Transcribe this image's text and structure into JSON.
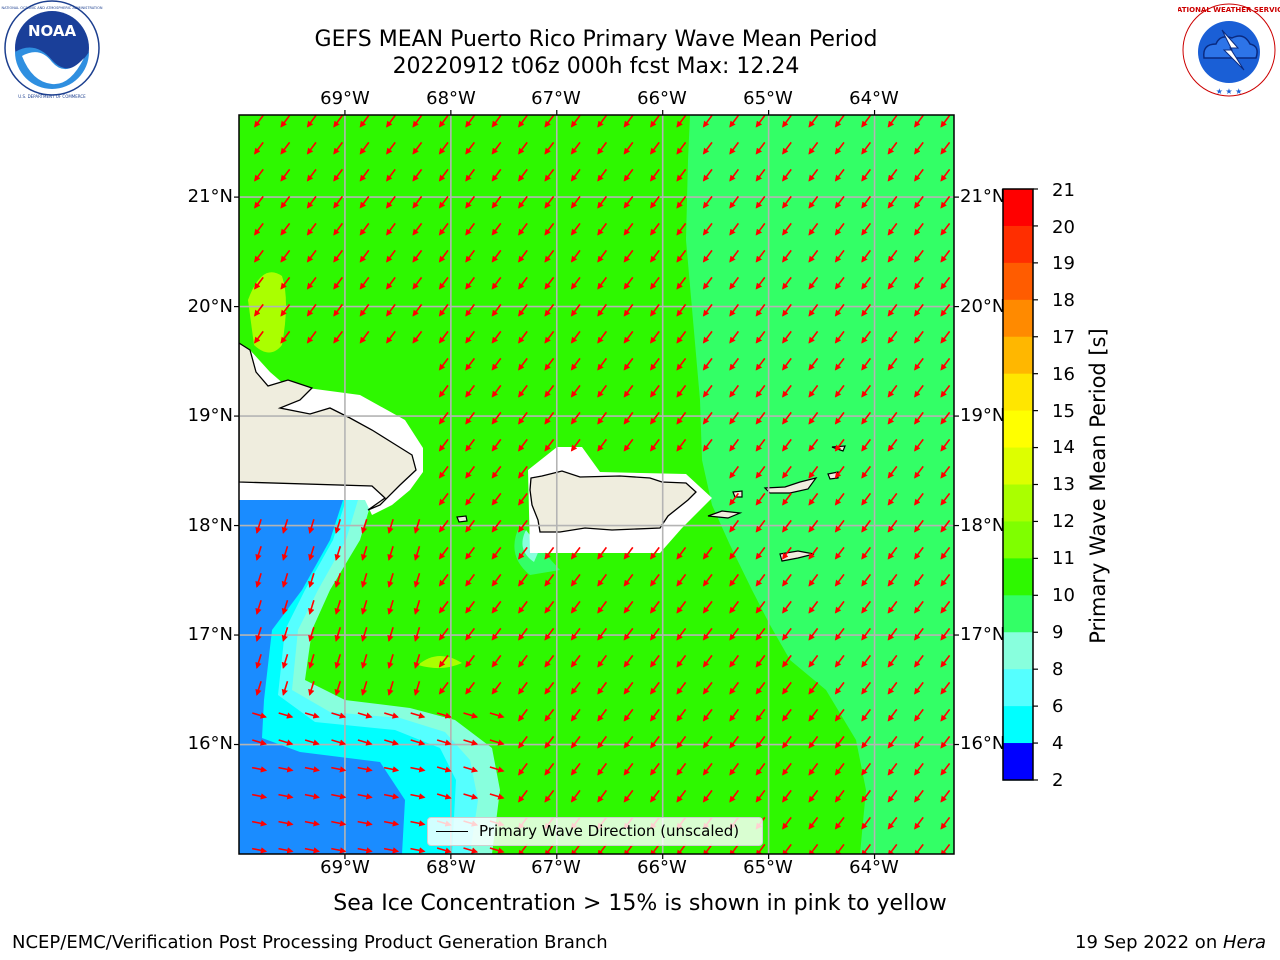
{
  "title_line1": "GEFS MEAN Puerto Rico Primary Wave Mean Period",
  "title_line2": "20220912 t06z 000h fcst   Max: 12.24",
  "longitude_labels": [
    "69°W",
    "68°W",
    "67°W",
    "66°W",
    "65°W",
    "64°W"
  ],
  "latitude_labels": [
    "21°N",
    "20°N",
    "19°N",
    "18°N",
    "17°N",
    "16°N"
  ],
  "map_extent": {
    "lon_min": -70.0,
    "lon_max": -63.25,
    "lat_min": 15.0,
    "lat_max": 21.75
  },
  "colorbar": {
    "title": "Primary Wave Mean Period [s]",
    "ticks": [
      "21",
      "20",
      "19",
      "18",
      "17",
      "16",
      "15",
      "14",
      "13",
      "12",
      "11",
      "10",
      "9",
      "8",
      "6",
      "4",
      "2"
    ],
    "colors_top_to_bottom": [
      "#ff0000",
      "#ff2e00",
      "#ff5c00",
      "#ff8a00",
      "#ffb700",
      "#ffe600",
      "#ffff00",
      "#ddff00",
      "#aaff00",
      "#7fff00",
      "#2ef800",
      "#33ff66",
      "#88ffdd",
      "#55ffff",
      "#00ffff",
      "#1a8cff",
      "#0000ff"
    ]
  },
  "field_colors": {
    "period_11_12": "#2ef800",
    "period_10_11": "#33ff66",
    "period_12_13": "#aaff00",
    "period_9_10": "#88ffdd",
    "period_8_9": "#55ffff",
    "period_6_8": "#00ffff",
    "period_4_6": "#1a8cff",
    "land": "#efedde",
    "arrow": "#ff0000"
  },
  "legend_label": "Primary Wave Direction (unscaled)",
  "sea_ice_note": "Sea Ice Concentration > 15% is shown in pink to yellow",
  "footer_left": "NCEP/EMC/Verification Post Processing Product Generation Branch",
  "footer_date": "19 Sep 2022 on ",
  "footer_host": "Hera",
  "logo_left_text": "NOAA",
  "logo_left_ring_top": "NATIONAL OCEANIC AND ATMOSPHERIC ADMINISTRATION",
  "logo_left_ring_bottom": "U.S. DEPARTMENT OF COMMERCE",
  "logo_right_ring": "NATIONAL WEATHER SERVICE"
}
